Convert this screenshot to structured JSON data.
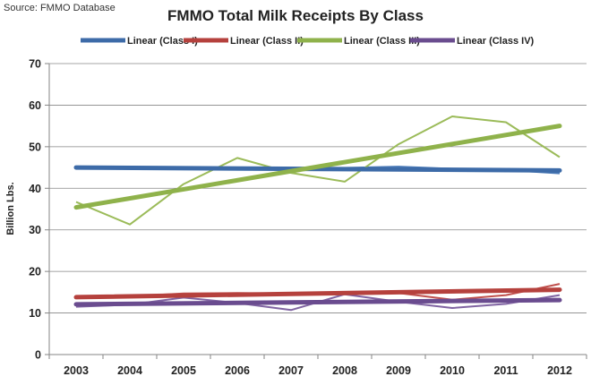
{
  "source": "Source:  FMMO Database",
  "chart_data": {
    "type": "line",
    "title": "FMMO Total Milk Receipts By Class",
    "xlabel": "",
    "ylabel": "Billion Lbs.",
    "categories": [
      "2003",
      "2004",
      "2005",
      "2006",
      "2007",
      "2008",
      "2009",
      "2010",
      "2011",
      "2012"
    ],
    "ylim": [
      0,
      70
    ],
    "yticks": [
      0,
      10,
      20,
      30,
      40,
      50,
      60,
      70
    ],
    "grid": true,
    "legend_position": "top",
    "series": [
      {
        "key": "class1",
        "color": "#4a7ab8",
        "values": [
          45.0,
          44.9,
          44.9,
          44.8,
          44.8,
          44.9,
          45.2,
          44.7,
          44.4,
          43.6
        ]
      },
      {
        "key": "class2",
        "color": "#c0504d",
        "values": [
          14.0,
          14.0,
          14.7,
          14.8,
          14.7,
          14.8,
          14.8,
          13.2,
          14.3,
          17.0
        ]
      },
      {
        "key": "class3",
        "color": "#9bbb59",
        "values": [
          36.7,
          31.3,
          41.0,
          47.3,
          43.7,
          41.6,
          50.6,
          57.3,
          55.9,
          47.5
        ]
      },
      {
        "key": "class4",
        "color": "#8064a2",
        "values": [
          11.5,
          12.0,
          13.7,
          12.4,
          10.7,
          14.5,
          12.7,
          11.2,
          12.2,
          14.3
        ]
      }
    ],
    "trendlines": [
      {
        "name": "Linear (Class I)",
        "color": "#3d6ba8",
        "start": 45.0,
        "end": 44.3
      },
      {
        "name": "Linear (Class II)",
        "color": "#b5413d",
        "start": 13.8,
        "end": 15.6
      },
      {
        "name": "Linear (Class III)",
        "color": "#8fb24b",
        "start": 35.4,
        "end": 55.0
      },
      {
        "name": "Linear (Class IV)",
        "color": "#6a4c8f",
        "start": 12.1,
        "end": 13.1
      }
    ]
  }
}
